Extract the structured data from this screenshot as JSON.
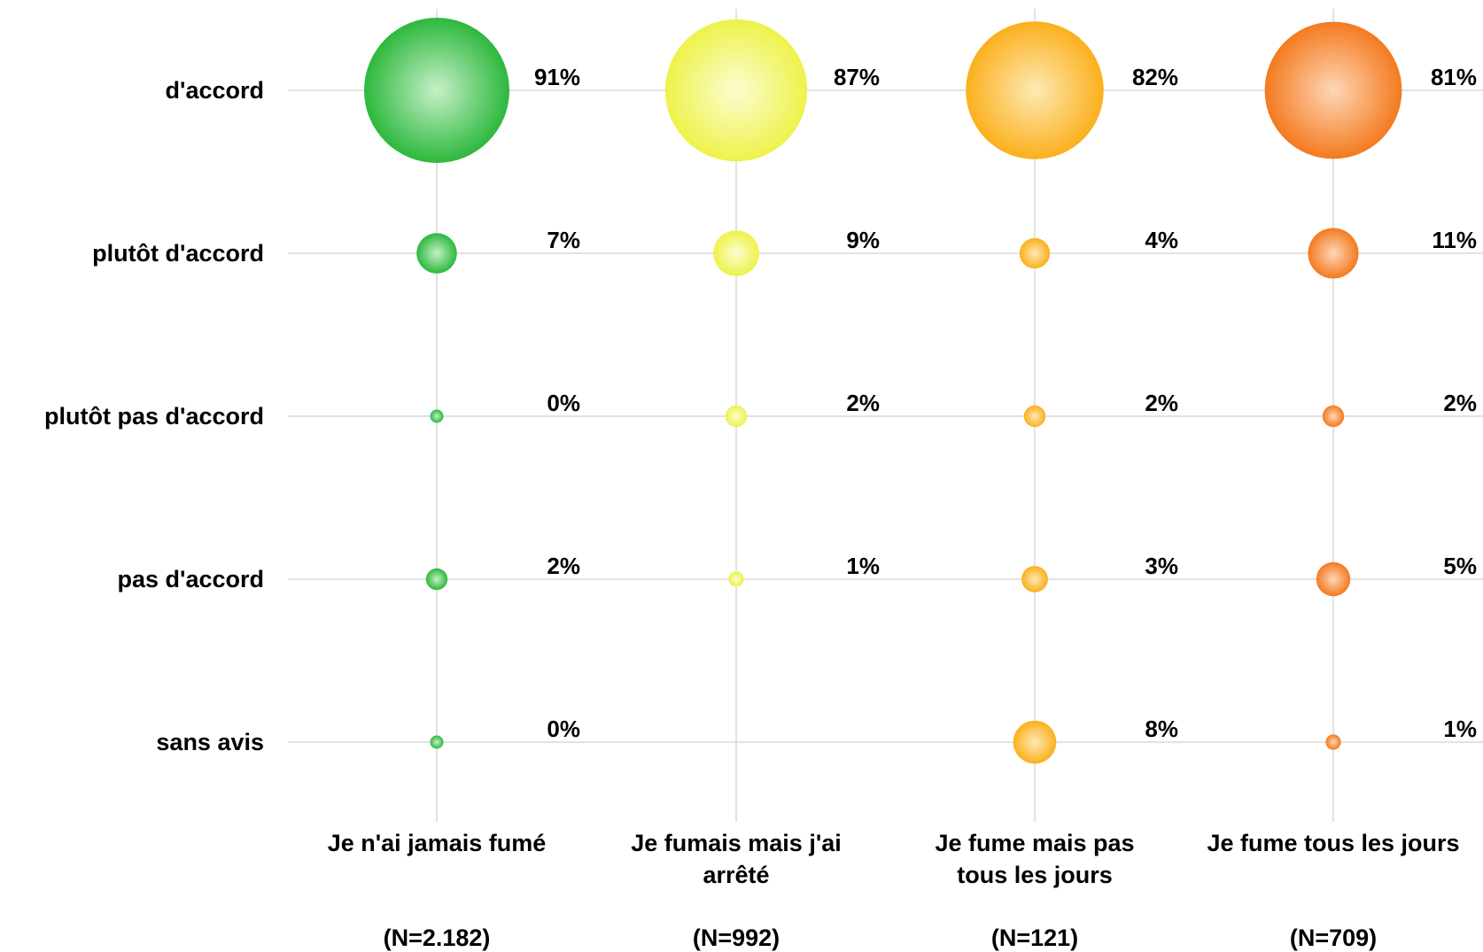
{
  "chart_data": {
    "type": "bubble",
    "rows": [
      "d'accord",
      "plutôt d'accord",
      "plutôt pas d'accord",
      "pas d'accord",
      "sans avis"
    ],
    "columns": [
      {
        "label_lines": [
          "Je n'ai jamais fumé"
        ],
        "n": "(N=2.182)"
      },
      {
        "label_lines": [
          "Je fumais mais j'ai",
          "arrêté"
        ],
        "n": "(N=992)"
      },
      {
        "label_lines": [
          "Je fume mais pas",
          "tous les jours"
        ],
        "n": "(N=121)"
      },
      {
        "label_lines": [
          "Je fume tous les jours"
        ],
        "n": "(N=709)"
      }
    ],
    "series": [
      {
        "values": [
          91,
          7,
          0,
          2,
          0
        ],
        "labels": [
          "91%",
          "7%",
          "0%",
          "2%",
          "0%"
        ],
        "color": "#2db83d",
        "light": "#c6f0c8"
      },
      {
        "values": [
          87,
          9,
          2,
          1,
          null
        ],
        "labels": [
          "87%",
          "9%",
          "2%",
          "1%",
          ""
        ],
        "color": "#eef24a",
        "light": "#fbfdd0"
      },
      {
        "values": [
          82,
          4,
          2,
          3,
          8
        ],
        "labels": [
          "82%",
          "4%",
          "2%",
          "3%",
          "8%"
        ],
        "color": "#fbb01c",
        "light": "#fde9b5"
      },
      {
        "values": [
          81,
          11,
          2,
          5,
          1
        ],
        "labels": [
          "81%",
          "11%",
          "2%",
          "5%",
          "1%"
        ],
        "color": "#f47a1f",
        "light": "#fdd7b7"
      }
    ],
    "value_unit": "%",
    "grid": true
  }
}
